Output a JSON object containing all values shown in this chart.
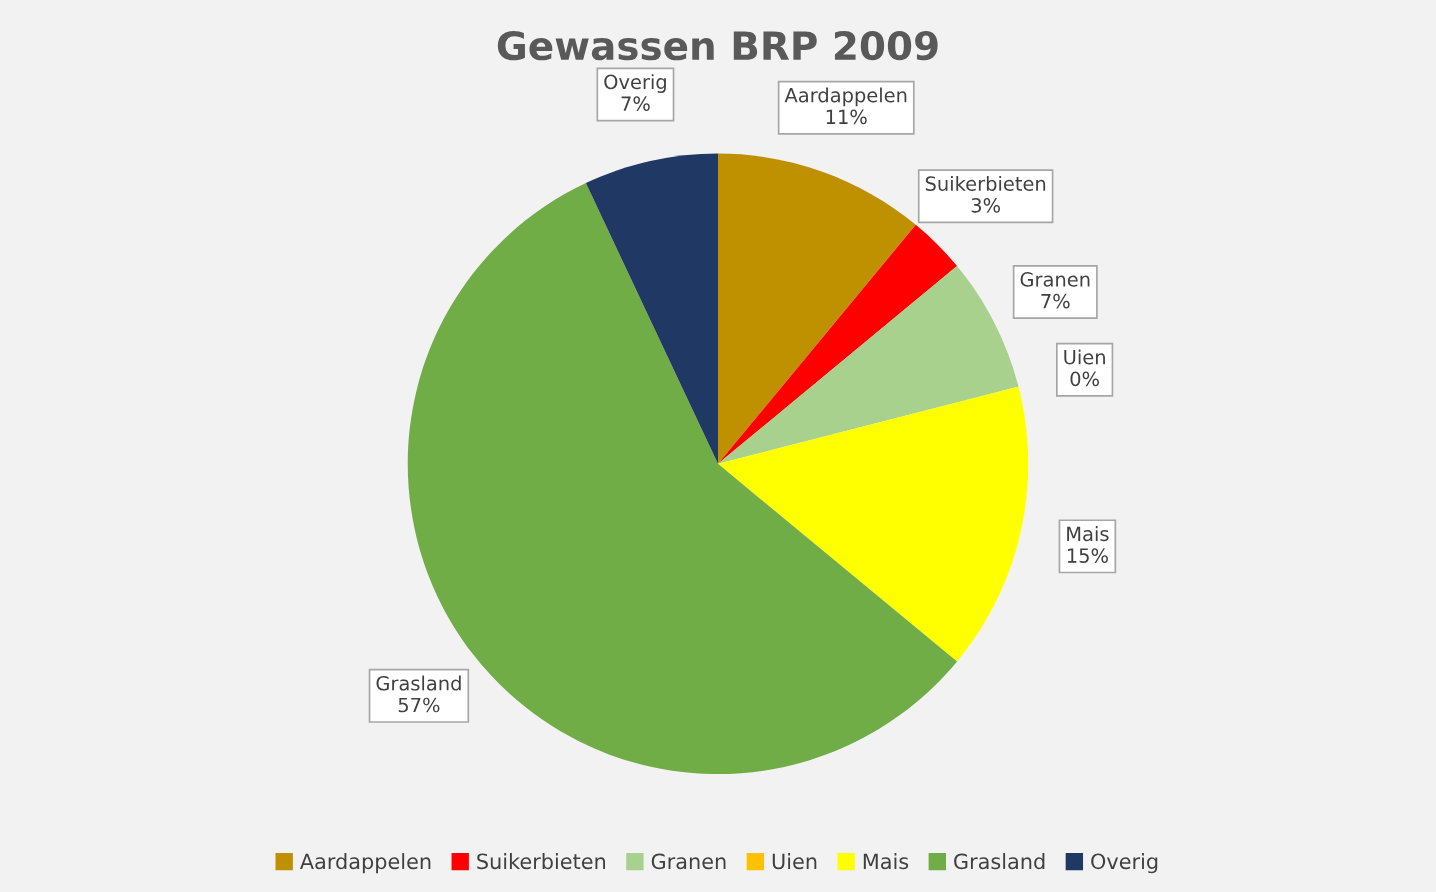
{
  "chart_data": {
    "type": "pie",
    "title": "Gewassen BRP 2009",
    "categories": [
      "Aardappelen",
      "Suikerbieten",
      "Granen",
      "Uien",
      "Mais",
      "Grasland",
      "Overig"
    ],
    "values": [
      11,
      3,
      7,
      0,
      15,
      57,
      7
    ],
    "value_labels": [
      "11%",
      "3%",
      "7%",
      "0%",
      "15%",
      "57%",
      "7%"
    ],
    "colors": [
      "#bf9000",
      "#ff0000",
      "#a9d18e",
      "#ffc000",
      "#ffff00",
      "#70ad47",
      "#203864"
    ],
    "legend": "bottom"
  }
}
